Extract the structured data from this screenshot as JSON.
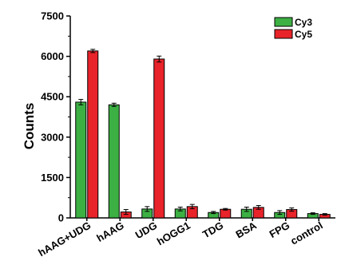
{
  "chart_data": {
    "type": "bar",
    "categories": [
      "hAAG+UDG",
      "hAAG",
      "UDG",
      "hOGG1",
      "TDG",
      "BSA",
      "FPG",
      "control"
    ],
    "series": [
      {
        "name": "Cy3",
        "color": "#3cb043",
        "values": [
          4300,
          4200,
          330,
          330,
          200,
          320,
          200,
          160
        ],
        "errors": [
          100,
          60,
          90,
          70,
          40,
          80,
          70,
          30
        ]
      },
      {
        "name": "Cy5",
        "color": "#e8232a",
        "values": [
          6200,
          220,
          5900,
          420,
          320,
          390,
          310,
          130
        ],
        "errors": [
          60,
          90,
          110,
          80,
          30,
          70,
          60,
          30
        ]
      }
    ],
    "xlabel": "",
    "ylabel": "Counts",
    "ylim": [
      0,
      7500
    ],
    "yticks": [
      "0",
      "1500",
      "3000",
      "4500",
      "6000",
      "7500"
    ],
    "legend_position": "top-right",
    "grid": false
  }
}
